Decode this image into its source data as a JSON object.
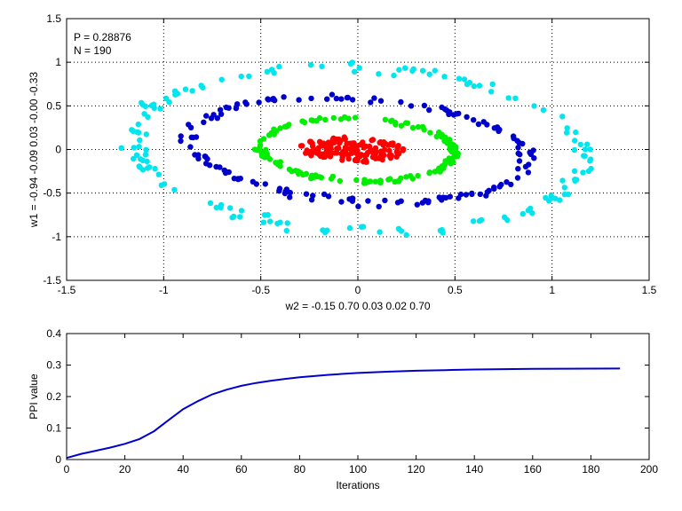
{
  "chart_data": [
    {
      "type": "scatter",
      "annotations": [
        "P = 0.28876",
        "N = 190"
      ],
      "xlabel": "w2 = -0.15  0.70  0.03  0.02  0.70",
      "ylabel": "w1 = -0.94  -0.09  0.03  -0.00  -0.33",
      "xlim": [
        -1.5,
        1.5
      ],
      "ylim": [
        -1.5,
        1.5
      ],
      "xticks": [
        "-1.5",
        "-1",
        "-0.5",
        "0",
        "0.5",
        "1",
        "1.5"
      ],
      "yticks": [
        "-1.5",
        "-1",
        "-0.5",
        "0",
        "0.5",
        "1",
        "1.5"
      ],
      "grid": true,
      "series": [
        {
          "color": "#00e5ee",
          "shape": "ellipse-ring",
          "center": [
            0,
            0
          ],
          "rx": 1.18,
          "ry": 0.92,
          "angle_deg": -14,
          "jitter": 0.1,
          "count": 150
        },
        {
          "color": "#0000cc",
          "shape": "ellipse-ring",
          "center": [
            0,
            0
          ],
          "rx": 0.88,
          "ry": 0.58,
          "angle_deg": -14,
          "jitter": 0.07,
          "count": 150
        },
        {
          "color": "#00ee00",
          "shape": "ellipse-ring",
          "center": [
            0,
            0
          ],
          "rx": 0.5,
          "ry": 0.36,
          "angle_deg": -10,
          "jitter": 0.05,
          "count": 150
        },
        {
          "color": "#ff0000",
          "shape": "ellipse-filled",
          "center": [
            -0.02,
            0.0
          ],
          "rx": 0.28,
          "ry": 0.13,
          "angle_deg": -6,
          "jitter": 0.02,
          "count": 150
        }
      ]
    },
    {
      "type": "line",
      "xlabel": "Iterations",
      "ylabel": "PPI value",
      "xlim": [
        0,
        200
      ],
      "ylim": [
        0,
        0.4
      ],
      "xticks": [
        "0",
        "20",
        "40",
        "60",
        "80",
        "100",
        "120",
        "140",
        "160",
        "180",
        "200"
      ],
      "yticks": [
        "0",
        "0.1",
        "0.2",
        "0.3",
        "0.4"
      ],
      "grid": false,
      "series": [
        {
          "color": "#0000cc",
          "x": [
            0,
            5,
            10,
            15,
            20,
            25,
            30,
            35,
            40,
            45,
            50,
            55,
            60,
            65,
            70,
            75,
            80,
            85,
            90,
            95,
            100,
            110,
            120,
            130,
            140,
            150,
            160,
            170,
            180,
            190
          ],
          "y": [
            0.005,
            0.018,
            0.028,
            0.038,
            0.05,
            0.065,
            0.09,
            0.125,
            0.16,
            0.185,
            0.207,
            0.222,
            0.234,
            0.243,
            0.25,
            0.256,
            0.261,
            0.265,
            0.269,
            0.272,
            0.275,
            0.279,
            0.282,
            0.284,
            0.286,
            0.287,
            0.288,
            0.2885,
            0.2887,
            0.289
          ]
        }
      ]
    }
  ]
}
